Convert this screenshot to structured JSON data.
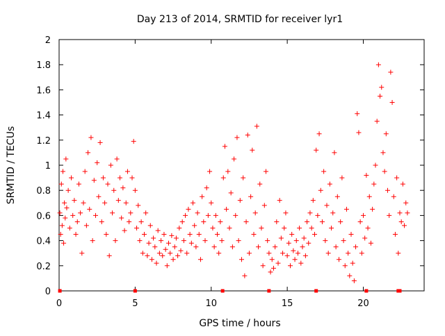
{
  "chart_data": {
    "type": "scatter",
    "title": "Day 213 of 2014, SRMTID for receiver lyr1",
    "xlabel": "GPS time / hours",
    "ylabel": "SRMTID / TECUs",
    "xlim": [
      0,
      24
    ],
    "ylim": [
      0,
      2
    ],
    "xticks": [
      0,
      5,
      10,
      15,
      20
    ],
    "xtick_labels": [
      "0",
      "5",
      "10",
      "15",
      "20"
    ],
    "yticks": [
      0,
      0.2,
      0.4,
      0.6,
      0.8,
      1,
      1.2,
      1.4,
      1.6,
      1.8,
      2
    ],
    "ytick_labels": [
      "0",
      "0.2",
      "0.4",
      "0.6",
      "0.8",
      "1",
      "1.2",
      "1.4",
      "1.6",
      "1.8",
      "2"
    ],
    "grid": false,
    "marker": "+",
    "color": "#ff0000",
    "series": [
      {
        "name": "SRMTID",
        "points": [
          [
            0.05,
            0.62
          ],
          [
            0.1,
            0.45
          ],
          [
            0.15,
            0.85
          ],
          [
            0.2,
            0.52
          ],
          [
            0.25,
            0.95
          ],
          [
            0.3,
            0.38
          ],
          [
            0.35,
            0.7
          ],
          [
            0.4,
            0.58
          ],
          [
            0.45,
            1.05
          ],
          [
            0.5,
            0.66
          ],
          [
            0.6,
            0.8
          ],
          [
            0.7,
            0.5
          ],
          [
            0.8,
            0.9
          ],
          [
            0.9,
            0.6
          ],
          [
            1.0,
            0.72
          ],
          [
            1.1,
            0.45
          ],
          [
            1.2,
            0.55
          ],
          [
            1.3,
            0.85
          ],
          [
            1.4,
            0.62
          ],
          [
            1.5,
            0.3
          ],
          [
            1.6,
            0.7
          ],
          [
            1.7,
            0.95
          ],
          [
            1.8,
            0.52
          ],
          [
            1.9,
            1.1
          ],
          [
            2.0,
            0.65
          ],
          [
            2.1,
            1.22
          ],
          [
            2.2,
            0.4
          ],
          [
            2.3,
            0.88
          ],
          [
            2.4,
            0.6
          ],
          [
            2.5,
            1.02
          ],
          [
            2.6,
            0.75
          ],
          [
            2.7,
            1.18
          ],
          [
            2.8,
            0.55
          ],
          [
            2.9,
            0.9
          ],
          [
            3.0,
            0.7
          ],
          [
            3.1,
            0.45
          ],
          [
            3.2,
            0.85
          ],
          [
            3.3,
            0.28
          ],
          [
            3.4,
            1.0
          ],
          [
            3.5,
            0.62
          ],
          [
            3.6,
            0.8
          ],
          [
            3.7,
            0.4
          ],
          [
            3.8,
            1.05
          ],
          [
            3.9,
            0.72
          ],
          [
            4.0,
            0.9
          ],
          [
            4.1,
            0.58
          ],
          [
            4.2,
            0.82
          ],
          [
            4.3,
            0.48
          ],
          [
            4.4,
            0.7
          ],
          [
            4.5,
            0.95
          ],
          [
            4.6,
            0.55
          ],
          [
            4.7,
            0.62
          ],
          [
            4.8,
            0.9
          ],
          [
            4.9,
            1.19
          ],
          [
            5.0,
            0.8
          ],
          [
            5.1,
            0.5
          ],
          [
            5.2,
            0.68
          ],
          [
            5.3,
            0.4
          ],
          [
            5.4,
            0.55
          ],
          [
            5.5,
            0.3
          ],
          [
            5.6,
            0.45
          ],
          [
            5.7,
            0.62
          ],
          [
            5.8,
            0.28
          ],
          [
            5.9,
            0.38
          ],
          [
            6.0,
            0.52
          ],
          [
            6.1,
            0.25
          ],
          [
            6.2,
            0.42
          ],
          [
            6.3,
            0.35
          ],
          [
            6.4,
            0.22
          ],
          [
            6.5,
            0.48
          ],
          [
            6.6,
            0.3
          ],
          [
            6.7,
            0.4
          ],
          [
            6.8,
            0.28
          ],
          [
            6.9,
            0.45
          ],
          [
            7.0,
            0.33
          ],
          [
            7.1,
            0.2
          ],
          [
            7.2,
            0.38
          ],
          [
            7.3,
            0.3
          ],
          [
            7.4,
            0.44
          ],
          [
            7.5,
            0.25
          ],
          [
            7.6,
            0.35
          ],
          [
            7.7,
            0.42
          ],
          [
            7.8,
            0.28
          ],
          [
            7.9,
            0.5
          ],
          [
            8.0,
            0.32
          ],
          [
            8.1,
            0.55
          ],
          [
            8.2,
            0.4
          ],
          [
            8.3,
            0.6
          ],
          [
            8.4,
            0.3
          ],
          [
            8.5,
            0.65
          ],
          [
            8.6,
            0.45
          ],
          [
            8.7,
            0.38
          ],
          [
            8.8,
            0.7
          ],
          [
            8.9,
            0.52
          ],
          [
            9.0,
            0.35
          ],
          [
            9.1,
            0.62
          ],
          [
            9.2,
            0.45
          ],
          [
            9.3,
            0.25
          ],
          [
            9.4,
            0.75
          ],
          [
            9.5,
            0.55
          ],
          [
            9.6,
            0.4
          ],
          [
            9.7,
            0.82
          ],
          [
            9.8,
            0.6
          ],
          [
            9.9,
            0.95
          ],
          [
            10.0,
            0.7
          ],
          [
            10.1,
            0.5
          ],
          [
            10.2,
            0.35
          ],
          [
            10.3,
            0.6
          ],
          [
            10.4,
            0.45
          ],
          [
            10.5,
            0.3
          ],
          [
            10.6,
            0.55
          ],
          [
            10.7,
            0.4
          ],
          [
            10.8,
            0.9
          ],
          [
            10.9,
            1.15
          ],
          [
            11.0,
            0.65
          ],
          [
            11.1,
            0.95
          ],
          [
            11.2,
            0.5
          ],
          [
            11.3,
            0.78
          ],
          [
            11.4,
            0.35
          ],
          [
            11.5,
            1.05
          ],
          [
            11.6,
            0.6
          ],
          [
            11.7,
            1.22
          ],
          [
            11.8,
            0.4
          ],
          [
            11.9,
            0.72
          ],
          [
            12.0,
            0.25
          ],
          [
            12.1,
            0.9
          ],
          [
            12.2,
            0.12
          ],
          [
            12.3,
            0.55
          ],
          [
            12.4,
            1.24
          ],
          [
            12.5,
            0.3
          ],
          [
            12.6,
            0.75
          ],
          [
            12.7,
            1.12
          ],
          [
            12.8,
            0.45
          ],
          [
            12.9,
            0.62
          ],
          [
            13.0,
            1.31
          ],
          [
            13.1,
            0.35
          ],
          [
            13.2,
            0.85
          ],
          [
            13.3,
            0.5
          ],
          [
            13.4,
            0.2
          ],
          [
            13.5,
            0.68
          ],
          [
            13.6,
            0.95
          ],
          [
            13.7,
            0.4
          ],
          [
            13.8,
            0.3
          ],
          [
            13.9,
            0.15
          ],
          [
            14.0,
            0.25
          ],
          [
            14.1,
            0.18
          ],
          [
            14.2,
            0.35
          ],
          [
            14.3,
            0.55
          ],
          [
            14.4,
            0.22
          ],
          [
            14.5,
            0.72
          ],
          [
            14.6,
            0.42
          ],
          [
            14.7,
            0.3
          ],
          [
            14.8,
            0.5
          ],
          [
            14.9,
            0.62
          ],
          [
            15.0,
            0.28
          ],
          [
            15.1,
            0.38
          ],
          [
            15.2,
            0.2
          ],
          [
            15.3,
            0.45
          ],
          [
            15.4,
            0.32
          ],
          [
            15.5,
            0.25
          ],
          [
            15.6,
            0.4
          ],
          [
            15.7,
            0.3
          ],
          [
            15.8,
            0.5
          ],
          [
            15.9,
            0.22
          ],
          [
            16.0,
            0.35
          ],
          [
            16.1,
            0.42
          ],
          [
            16.2,
            0.28
          ],
          [
            16.3,
            0.55
          ],
          [
            16.4,
            0.38
          ],
          [
            16.5,
            0.62
          ],
          [
            16.6,
            0.5
          ],
          [
            16.7,
            0.72
          ],
          [
            16.8,
            0.45
          ],
          [
            16.9,
            1.12
          ],
          [
            17.0,
            0.6
          ],
          [
            17.1,
            1.25
          ],
          [
            17.2,
            0.8
          ],
          [
            17.3,
            0.55
          ],
          [
            17.4,
            0.95
          ],
          [
            17.5,
            0.4
          ],
          [
            17.6,
            0.68
          ],
          [
            17.7,
            0.3
          ],
          [
            17.8,
            0.85
          ],
          [
            17.9,
            0.5
          ],
          [
            18.0,
            0.62
          ],
          [
            18.1,
            1.1
          ],
          [
            18.2,
            0.35
          ],
          [
            18.3,
            0.75
          ],
          [
            18.4,
            0.25
          ],
          [
            18.5,
            0.55
          ],
          [
            18.6,
            0.9
          ],
          [
            18.7,
            0.4
          ],
          [
            18.8,
            0.2
          ],
          [
            18.9,
            0.65
          ],
          [
            19.0,
            0.3
          ],
          [
            19.1,
            0.12
          ],
          [
            19.2,
            0.45
          ],
          [
            19.3,
            0.22
          ],
          [
            19.4,
            0.08
          ],
          [
            19.5,
            0.35
          ],
          [
            19.6,
            1.41
          ],
          [
            19.7,
            1.26
          ],
          [
            19.8,
            0.55
          ],
          [
            19.9,
            0.3
          ],
          [
            20.0,
            0.6
          ],
          [
            20.1,
            0.42
          ],
          [
            20.2,
            0.92
          ],
          [
            20.3,
            0.5
          ],
          [
            20.4,
            0.75
          ],
          [
            20.5,
            0.38
          ],
          [
            20.6,
            0.65
          ],
          [
            20.7,
            0.85
          ],
          [
            20.8,
            1.0
          ],
          [
            20.9,
            1.35
          ],
          [
            21.0,
            1.8
          ],
          [
            21.1,
            1.55
          ],
          [
            21.2,
            1.62
          ],
          [
            21.3,
            1.1
          ],
          [
            21.4,
            0.95
          ],
          [
            21.5,
            1.25
          ],
          [
            21.6,
            0.8
          ],
          [
            21.7,
            0.6
          ],
          [
            21.8,
            1.74
          ],
          [
            21.9,
            1.5
          ],
          [
            22.0,
            0.75
          ],
          [
            22.1,
            0.45
          ],
          [
            22.2,
            0.9
          ],
          [
            22.3,
            0.3
          ],
          [
            22.4,
            0.62
          ],
          [
            22.5,
            0.55
          ],
          [
            22.6,
            0.85
          ],
          [
            22.7,
            0.52
          ],
          [
            22.8,
            0.7
          ],
          [
            22.9,
            0.62
          ]
        ]
      }
    ],
    "zero_markers": [
      0.05,
      5.0,
      10.75,
      13.8,
      16.9,
      20.2,
      22.3,
      22.4
    ]
  }
}
